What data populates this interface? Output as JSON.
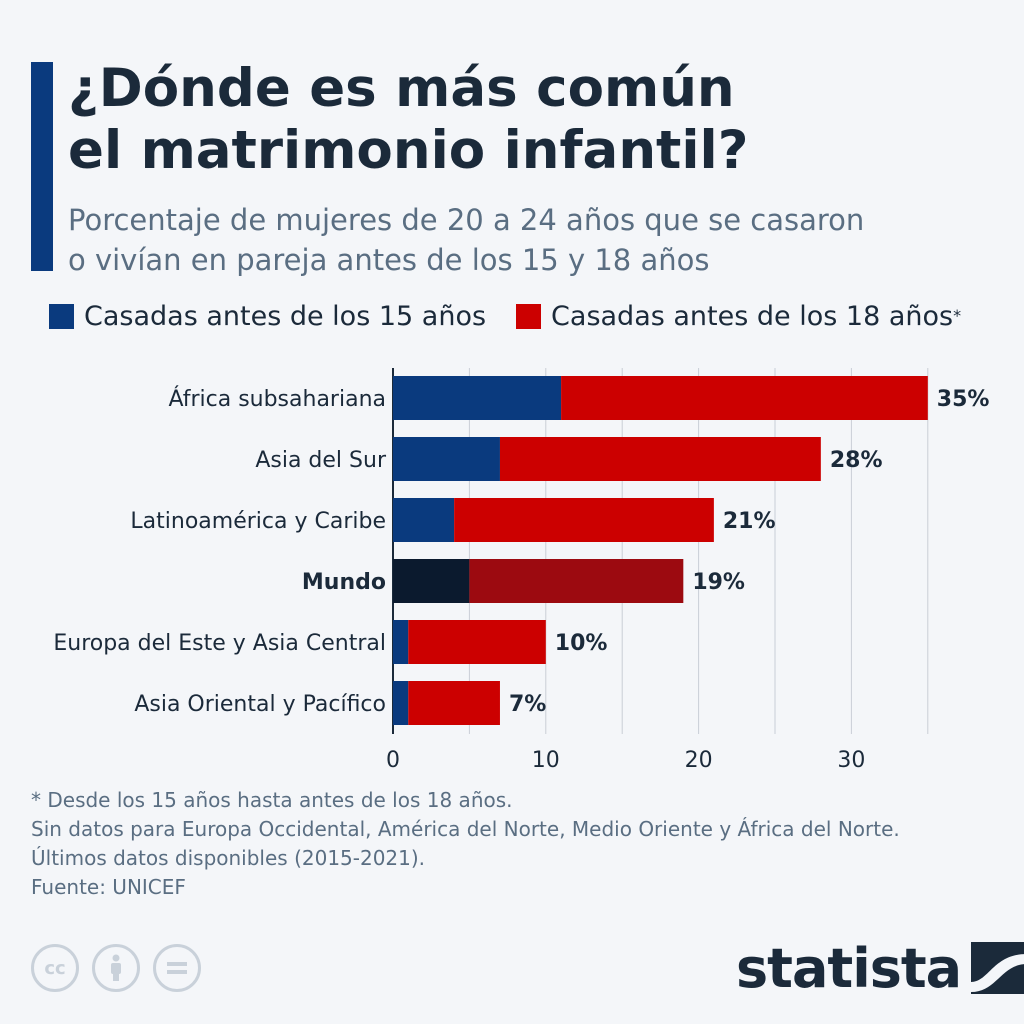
{
  "header": {
    "title_line1": "¿Dónde es más común",
    "title_line2": "el matrimonio infantil?",
    "subtitle_line1": "Porcentaje de mujeres de 20 a 24 años que se casaron",
    "subtitle_line2": "o vivían en pareja antes de los 15 y 18 años"
  },
  "legend": {
    "item1": "Casadas antes de los 15 años",
    "item2": "Casadas antes de los 18 años",
    "item2_mark": "*"
  },
  "colors": {
    "under15": "#0a3a7e",
    "under18": "#cc0000",
    "world_under15": "#0b1a2e",
    "world_under18": "#9c0a10",
    "accent": "#0a3a7e"
  },
  "chart_data": {
    "type": "bar",
    "orientation": "horizontal",
    "stacked": true,
    "categories": [
      "África subsahariana",
      "Asia del Sur",
      "Latinoamérica y Caribe",
      "Mundo",
      "Europa del Este y Asia Central",
      "Asia Oriental y Pacífico"
    ],
    "highlight": "Mundo",
    "series": [
      {
        "name": "Casadas antes de los 15 años",
        "values": [
          11,
          7,
          4,
          5,
          1,
          1
        ]
      },
      {
        "name": "Casadas antes de los 18 años",
        "values": [
          24,
          21,
          17,
          14,
          9,
          6
        ]
      }
    ],
    "totals": [
      35,
      28,
      21,
      19,
      10,
      7
    ],
    "total_labels": [
      "35%",
      "28%",
      "21%",
      "19%",
      "10%",
      "7%"
    ],
    "xlim": [
      0,
      35
    ],
    "xticks": [
      0,
      10,
      20,
      30
    ],
    "grid": true
  },
  "footnotes": {
    "line1": "* Desde los 15 años hasta antes de los 18 años.",
    "line2": "Sin datos para Europa Occidental, América del Norte, Medio Oriente y África del Norte.",
    "line3": "Últimos datos disponibles (2015-2021).",
    "source": "Fuente: UNICEF"
  },
  "license_icons": [
    "cc-icon",
    "person-icon",
    "equals-icon"
  ],
  "brand": {
    "name": "statista"
  }
}
